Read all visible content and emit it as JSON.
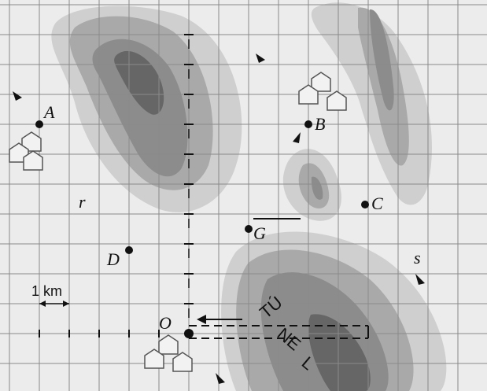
{
  "points": [
    {
      "label": "A"
    },
    {
      "label": "B"
    },
    {
      "label": "C"
    },
    {
      "label": "D"
    },
    {
      "label": "G"
    },
    {
      "label": "O"
    }
  ],
  "lines": {
    "r": "r",
    "s": "s"
  },
  "scale": "1 km",
  "tunnel": [
    "TÚ",
    "NE",
    "L"
  ]
}
